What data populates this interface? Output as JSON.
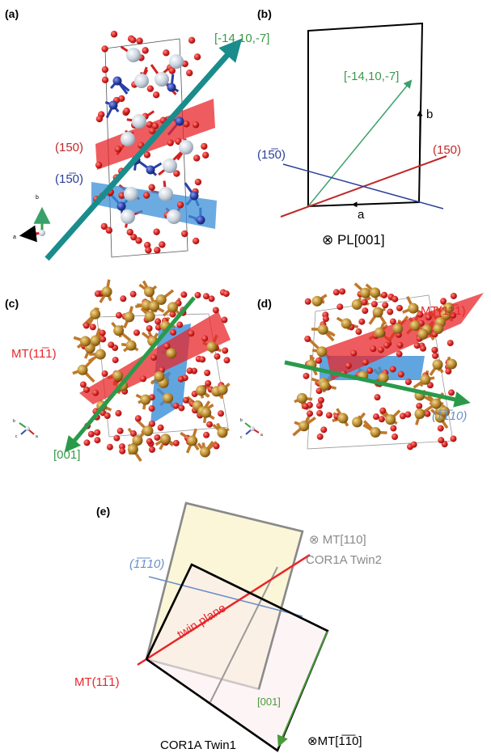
{
  "panels": {
    "a": {
      "letter": "(a)",
      "direction_label": "[-14,10,-7]",
      "plane_150": "(150)",
      "plane_1bar50": "(15̅0)",
      "axis_b": "b",
      "axis_a": "a"
    },
    "b": {
      "letter": "(b)",
      "direction_label": "[-14,10,-7]",
      "plane_150": "(150)",
      "plane_1bar50": "(15̅0)",
      "axis_b": "b",
      "axis_a": "a",
      "view_label": "⊗ PL[001]"
    },
    "c": {
      "letter": "(c)",
      "plane_label": "MT(11̅1)",
      "direction_label": "[001]",
      "axis_b": "b",
      "axis_c": "c",
      "axis_a": "a"
    },
    "d": {
      "letter": "(d)",
      "plane_label": "MT(11̅1)",
      "plane_bar110": "(1̅1̅10)",
      "axis_b": "b",
      "axis_c": "c",
      "axis_a": "a"
    },
    "e": {
      "letter": "(e)",
      "view_twin2": "⊗ MT[110]",
      "twin2_label": "COR1A Twin2",
      "plane_bar110": "(1̅1̅10)",
      "twin_plane_label": "twin plane",
      "plane_label": "MT(11̅1)",
      "direction_label": "[001]",
      "view_twin1": "⊗MT[1̅1̅0]",
      "twin1_label": "COR1A Twin1"
    }
  },
  "colors": {
    "oxygen": "#d42020",
    "metal_blue": "#2a3fa8",
    "metal_white": "#c9d3de",
    "gold": "#b8862a",
    "plane_red": "#e8262a",
    "plane_blue": "#3a8fd8",
    "dir_teal": "#1a8c8c",
    "dir_green": "#2a9a4a",
    "label_red": "#c0282a",
    "label_blue": "#2c3f99",
    "label_green": "#3a9a4a",
    "label_lightblue": "#6a8fc8",
    "label_gray": "#8a8a8a"
  }
}
